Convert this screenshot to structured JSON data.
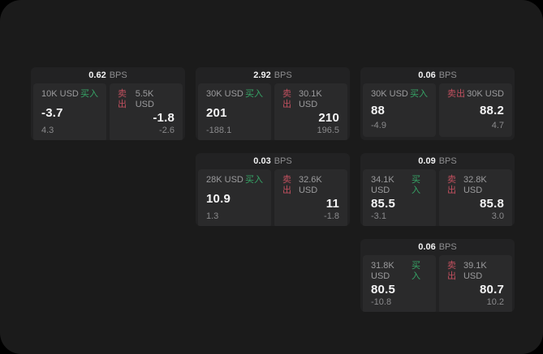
{
  "labels": {
    "buy": "买入",
    "sell": "卖出",
    "bps_unit": "BPS"
  },
  "colors": {
    "buy_green": "#36a567",
    "sell_red": "#c2505f",
    "screen_bg": "#1b1b1b",
    "card_bg": "#222223",
    "tile_bg": "#2a2a2b",
    "primary_text": "#f5f5f6",
    "muted_text": "#9b9b9d"
  },
  "cards": [
    {
      "bps": "0.62",
      "buy": {
        "amount": "10K USD",
        "value": "-3.7",
        "sub": "4.3"
      },
      "sell": {
        "amount": "5.5K USD",
        "value": "-1.8",
        "sub": "-2.6"
      }
    },
    {
      "bps": "2.92",
      "buy": {
        "amount": "30K USD",
        "value": "201",
        "sub": "-188.1"
      },
      "sell": {
        "amount": "30.1K USD",
        "value": "210",
        "sub": "196.5"
      }
    },
    {
      "bps": "0.06",
      "buy": {
        "amount": "30K USD",
        "value": "88",
        "sub": "-4.9"
      },
      "sell": {
        "amount": "30K USD",
        "value": "88.2",
        "sub": "4.7"
      }
    },
    {
      "bps": "0.03",
      "buy": {
        "amount": "28K USD",
        "value": "10.9",
        "sub": "1.3"
      },
      "sell": {
        "amount": "32.6K USD",
        "value": "11",
        "sub": "-1.8"
      }
    },
    {
      "bps": "0.09",
      "buy": {
        "amount": "34.1K USD",
        "value": "85.5",
        "sub": "-3.1"
      },
      "sell": {
        "amount": "32.8K USD",
        "value": "85.8",
        "sub": "3.0"
      }
    },
    {
      "bps": "0.06",
      "buy": {
        "amount": "31.8K USD",
        "value": "80.5",
        "sub": "-10.8"
      },
      "sell": {
        "amount": "39.1K USD",
        "value": "80.7",
        "sub": "10.2"
      }
    }
  ]
}
